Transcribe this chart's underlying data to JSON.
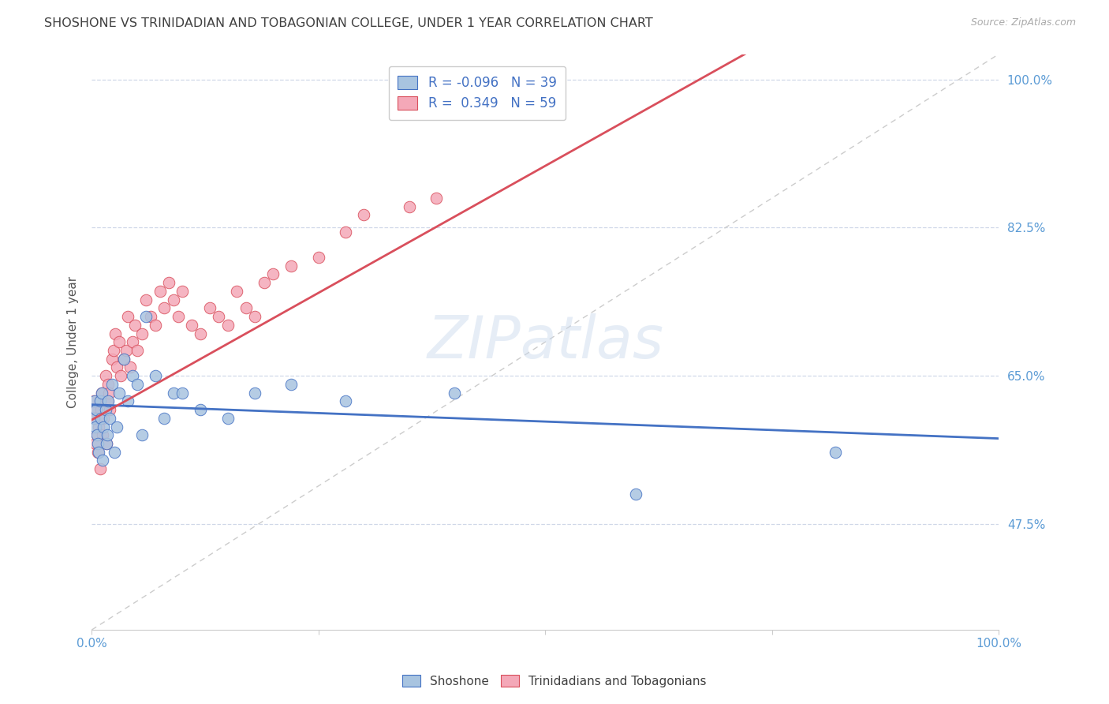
{
  "title": "SHOSHONE VS TRINIDADIAN AND TOBAGONIAN COLLEGE, UNDER 1 YEAR CORRELATION CHART",
  "source": "Source: ZipAtlas.com",
  "ylabel": "College, Under 1 year",
  "xlim": [
    0.0,
    1.0
  ],
  "ylim": [
    0.35,
    1.03
  ],
  "legend_r_blue": "-0.096",
  "legend_n_blue": "39",
  "legend_r_pink": "0.349",
  "legend_n_pink": "59",
  "blue_scatter_color": "#a8c4e0",
  "pink_scatter_color": "#f4a8b8",
  "blue_line_color": "#4472c4",
  "pink_line_color": "#d94f5c",
  "diagonal_color": "#cccccc",
  "watermark": "ZIPatlas",
  "shoshone_x": [
    0.002,
    0.003,
    0.004,
    0.005,
    0.006,
    0.007,
    0.008,
    0.009,
    0.01,
    0.011,
    0.012,
    0.013,
    0.015,
    0.016,
    0.017,
    0.018,
    0.02,
    0.022,
    0.025,
    0.028,
    0.03,
    0.035,
    0.04,
    0.045,
    0.05,
    0.055,
    0.06,
    0.07,
    0.08,
    0.09,
    0.1,
    0.12,
    0.15,
    0.18,
    0.22,
    0.28,
    0.4,
    0.6,
    0.82
  ],
  "shoshone_y": [
    0.6,
    0.62,
    0.59,
    0.61,
    0.58,
    0.57,
    0.56,
    0.62,
    0.6,
    0.63,
    0.55,
    0.59,
    0.61,
    0.57,
    0.58,
    0.62,
    0.6,
    0.64,
    0.56,
    0.59,
    0.63,
    0.67,
    0.62,
    0.65,
    0.64,
    0.58,
    0.72,
    0.65,
    0.6,
    0.63,
    0.63,
    0.61,
    0.6,
    0.63,
    0.64,
    0.62,
    0.63,
    0.51,
    0.56
  ],
  "trini_x": [
    0.001,
    0.002,
    0.003,
    0.004,
    0.005,
    0.006,
    0.007,
    0.008,
    0.009,
    0.01,
    0.011,
    0.012,
    0.013,
    0.014,
    0.015,
    0.016,
    0.017,
    0.018,
    0.019,
    0.02,
    0.022,
    0.024,
    0.026,
    0.028,
    0.03,
    0.032,
    0.035,
    0.038,
    0.04,
    0.042,
    0.045,
    0.048,
    0.05,
    0.055,
    0.06,
    0.065,
    0.07,
    0.075,
    0.08,
    0.085,
    0.09,
    0.095,
    0.1,
    0.11,
    0.12,
    0.13,
    0.14,
    0.15,
    0.16,
    0.17,
    0.18,
    0.19,
    0.2,
    0.22,
    0.25,
    0.28,
    0.3,
    0.35,
    0.38
  ],
  "trini_y": [
    0.61,
    0.62,
    0.6,
    0.57,
    0.6,
    0.58,
    0.56,
    0.59,
    0.54,
    0.61,
    0.63,
    0.58,
    0.6,
    0.62,
    0.65,
    0.57,
    0.62,
    0.64,
    0.63,
    0.61,
    0.67,
    0.68,
    0.7,
    0.66,
    0.69,
    0.65,
    0.67,
    0.68,
    0.72,
    0.66,
    0.69,
    0.71,
    0.68,
    0.7,
    0.74,
    0.72,
    0.71,
    0.75,
    0.73,
    0.76,
    0.74,
    0.72,
    0.75,
    0.71,
    0.7,
    0.73,
    0.72,
    0.71,
    0.75,
    0.73,
    0.72,
    0.76,
    0.77,
    0.78,
    0.79,
    0.82,
    0.84,
    0.85,
    0.86
  ],
  "background_color": "#ffffff",
  "grid_color": "#d0d8e8",
  "title_color": "#404040",
  "axis_label_color": "#555555",
  "tick_label_color": "#5b9bd5"
}
